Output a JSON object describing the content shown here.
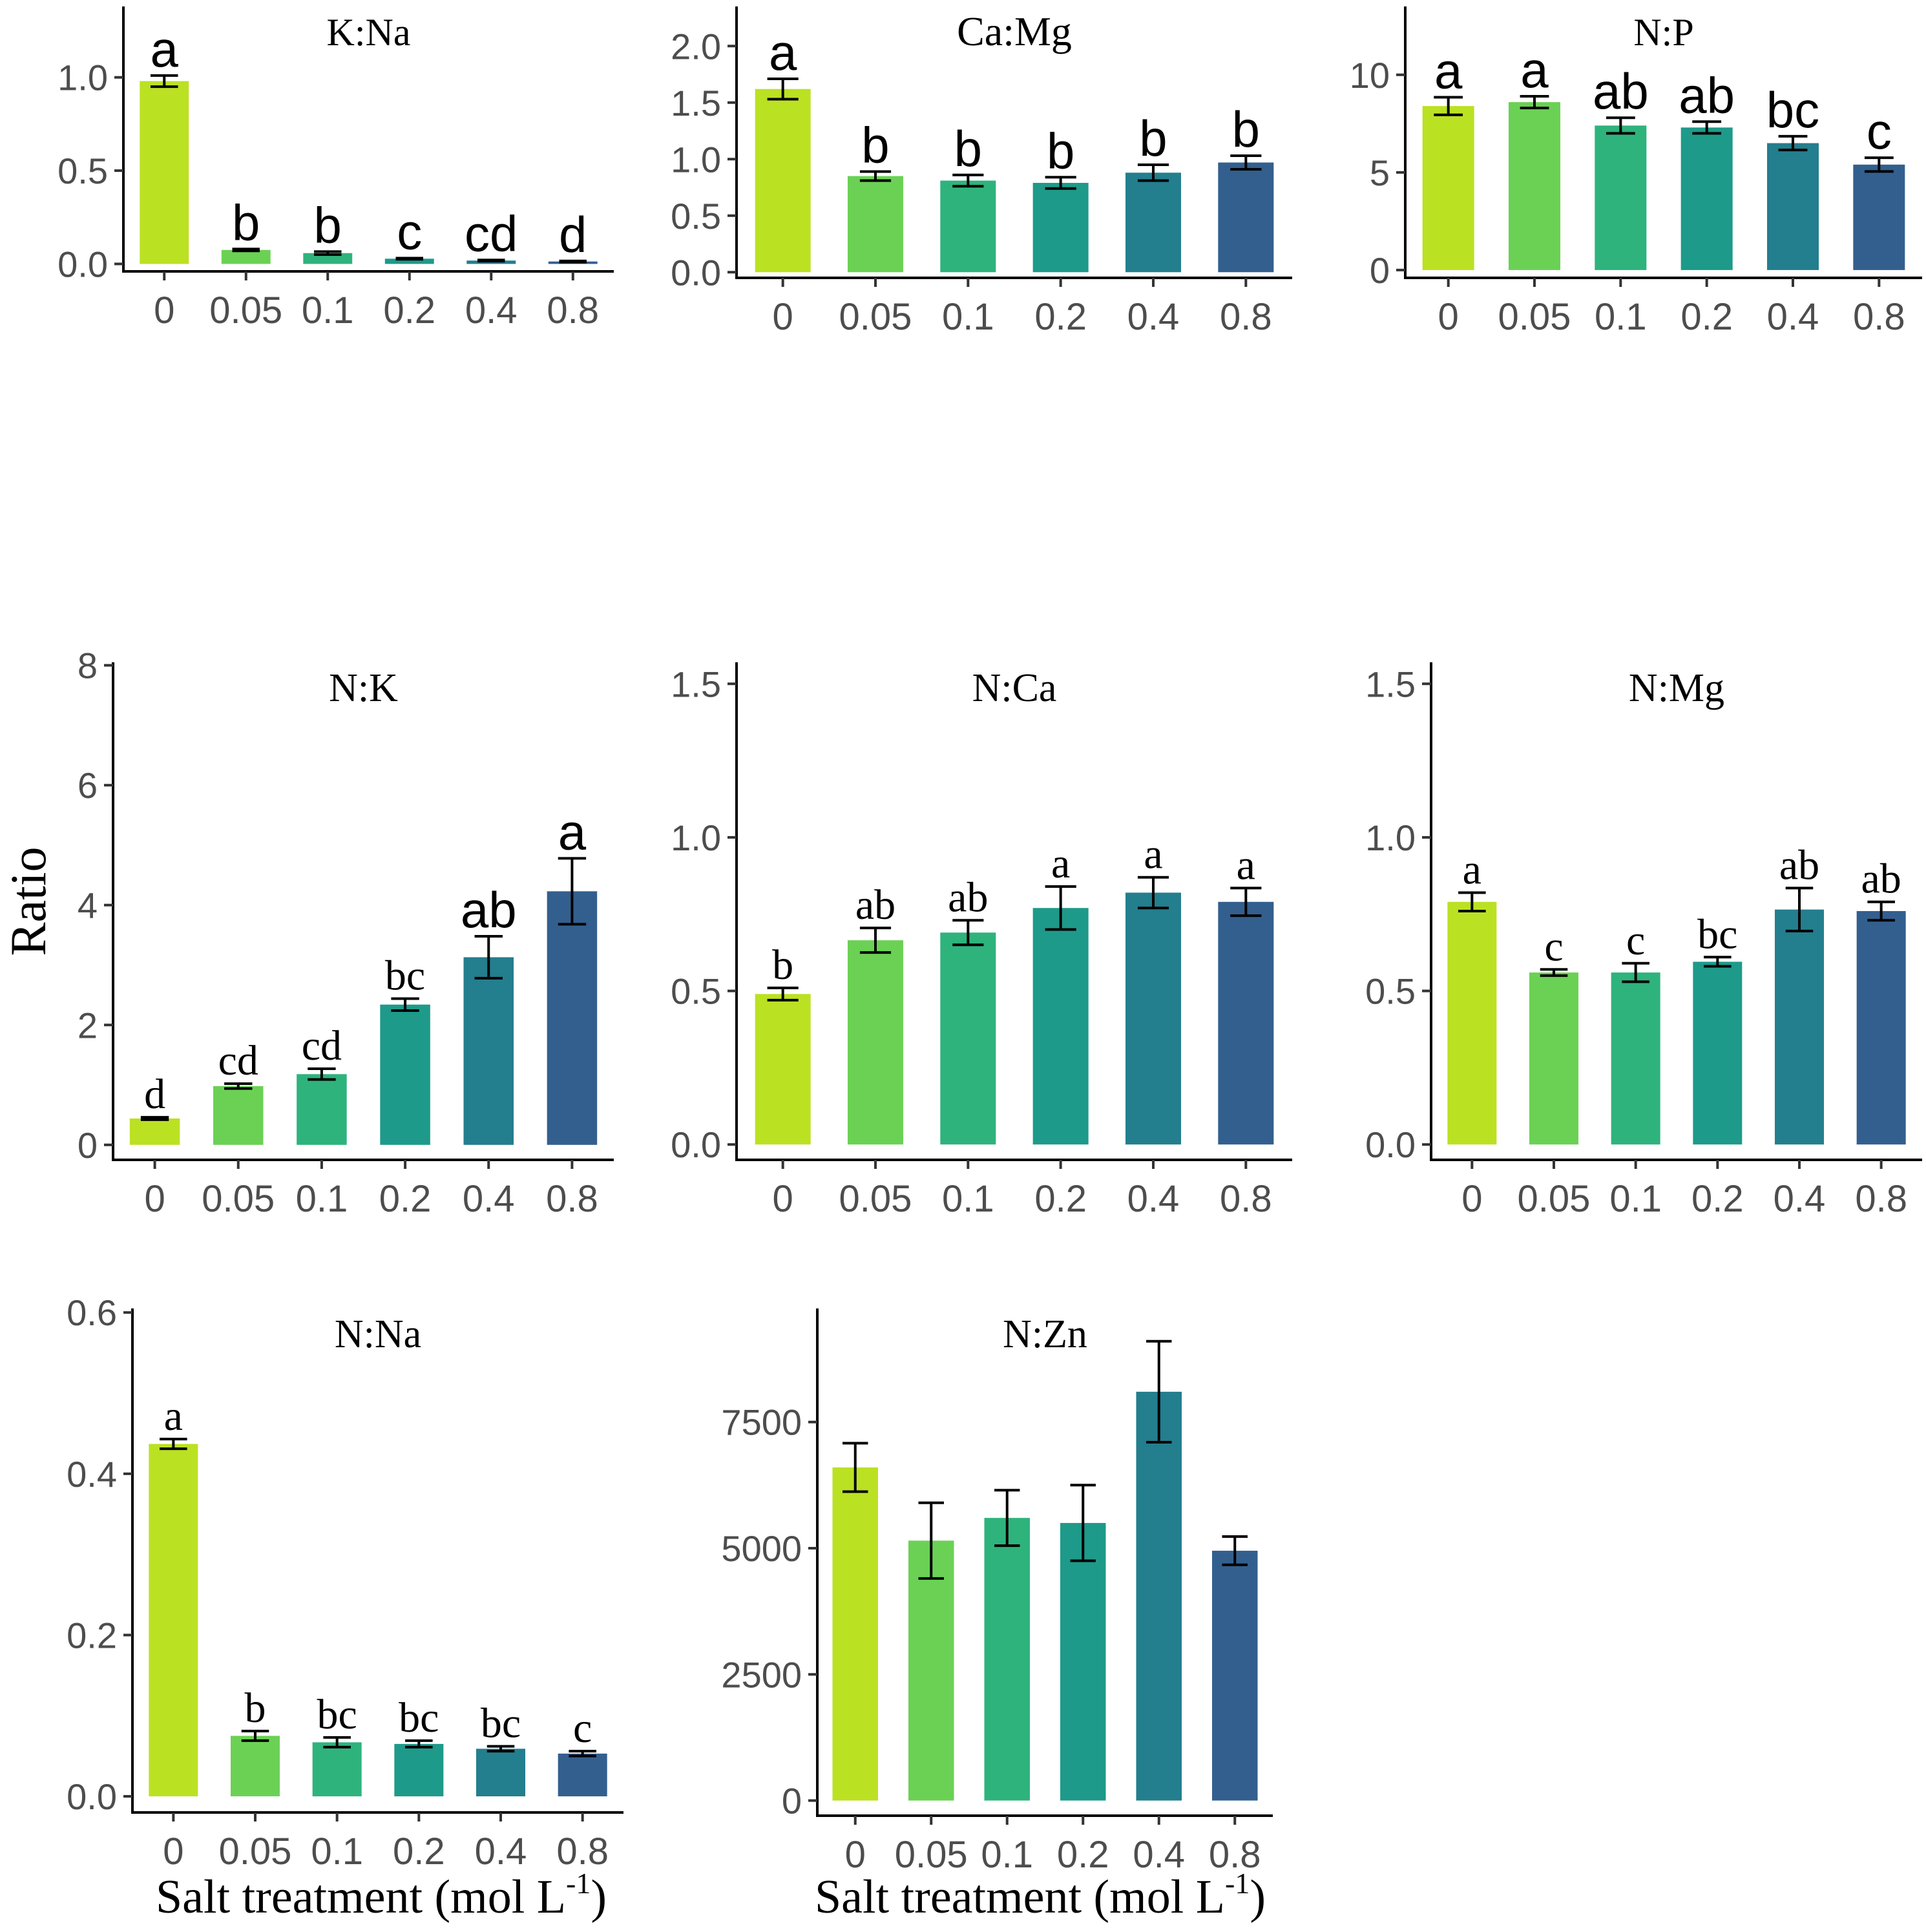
{
  "y_axis_title": "Ratio",
  "x_axis_title": "Salt treatment (mol L",
  "x_axis_title_sup": "-1",
  "x_axis_title_close": ")",
  "colors": [
    "#bbe123",
    "#6bd155",
    "#2eb37c",
    "#1e9a8a",
    "#237e8e",
    "#335f8e"
  ],
  "chart_data": [
    {
      "type": "bar",
      "title": "K:Na",
      "categories": [
        "0",
        "0.05",
        "0.1",
        "0.2",
        "0.4",
        "0.8"
      ],
      "values": [
        0.98,
        0.075,
        0.058,
        0.028,
        0.018,
        0.013
      ],
      "errors": [
        0.03,
        0.005,
        0.008,
        0.003,
        0.003,
        0.003
      ],
      "letters": [
        "a",
        "b",
        "b",
        "c",
        "cd",
        "d"
      ],
      "letter_font": "sans",
      "ylim": [
        -0.04,
        1.38
      ],
      "yticks": [
        0.0,
        0.5,
        1.0
      ],
      "ytick_labels": [
        "0.0",
        "0.5",
        "1.0"
      ]
    },
    {
      "type": "bar",
      "title": "Ca:Mg",
      "categories": [
        "0",
        "0.05",
        "0.1",
        "0.2",
        "0.4",
        "0.8"
      ],
      "values": [
        1.62,
        0.85,
        0.81,
        0.79,
        0.88,
        0.97
      ],
      "errors": [
        0.09,
        0.04,
        0.05,
        0.05,
        0.07,
        0.06
      ],
      "letters": [
        "a",
        "b",
        "b",
        "b",
        "b",
        "b"
      ],
      "letter_font": "sans",
      "ylim": [
        -0.05,
        2.35
      ],
      "yticks": [
        0.0,
        0.5,
        1.0,
        1.5,
        2.0
      ],
      "ytick_labels": [
        "0.0",
        "0.5",
        "1.0",
        "1.5",
        "2.0"
      ]
    },
    {
      "type": "bar",
      "title": "N:P",
      "categories": [
        "0",
        "0.05",
        "0.1",
        "0.2",
        "0.4",
        "0.8"
      ],
      "values": [
        8.4,
        8.6,
        7.4,
        7.3,
        6.5,
        5.4
      ],
      "errors": [
        0.45,
        0.3,
        0.4,
        0.3,
        0.35,
        0.35
      ],
      "letters": [
        "a",
        "a",
        "ab",
        "ab",
        "bc",
        "c"
      ],
      "letter_font": "sans",
      "ylim": [
        -0.4,
        13.5
      ],
      "yticks": [
        0,
        5,
        10
      ],
      "ytick_labels": [
        "0",
        "5",
        "10"
      ]
    },
    {
      "type": "bar",
      "title": "N:K",
      "categories": [
        "0",
        "0.05",
        "0.1",
        "0.2",
        "0.4",
        "0.8"
      ],
      "values": [
        0.44,
        0.98,
        1.18,
        2.34,
        3.13,
        4.23
      ],
      "errors": [
        0.02,
        0.04,
        0.09,
        0.1,
        0.35,
        0.55
      ],
      "letters": [
        "d",
        "cd",
        "cd",
        "bc",
        "ab",
        "a"
      ],
      "letter_font": "mixed",
      "ylim": [
        -0.25,
        8.05
      ],
      "yticks": [
        0,
        2,
        4,
        6,
        8
      ],
      "ytick_labels": [
        "0",
        "2",
        "4",
        "6",
        "8"
      ]
    },
    {
      "type": "bar",
      "title": "N:Ca",
      "categories": [
        "0",
        "0.05",
        "0.1",
        "0.2",
        "0.4",
        "0.8"
      ],
      "values": [
        0.49,
        0.665,
        0.69,
        0.77,
        0.82,
        0.79
      ],
      "errors": [
        0.02,
        0.04,
        0.04,
        0.07,
        0.05,
        0.045
      ],
      "letters": [
        "b",
        "ab",
        "ab",
        "a",
        "a",
        "a"
      ],
      "letter_font": "serif",
      "ylim": [
        -0.05,
        1.57
      ],
      "yticks": [
        0.0,
        0.5,
        1.0,
        1.5
      ],
      "ytick_labels": [
        "0.0",
        "0.5",
        "1.0",
        "1.5"
      ]
    },
    {
      "type": "bar",
      "title": "N:Mg",
      "categories": [
        "0",
        "0.05",
        "0.1",
        "0.2",
        "0.4",
        "0.8"
      ],
      "values": [
        0.79,
        0.56,
        0.56,
        0.595,
        0.765,
        0.76
      ],
      "errors": [
        0.03,
        0.01,
        0.03,
        0.015,
        0.07,
        0.03
      ],
      "letters": [
        "a",
        "c",
        "c",
        "bc",
        "ab",
        "ab"
      ],
      "letter_font": "serif",
      "ylim": [
        -0.05,
        1.57
      ],
      "yticks": [
        0.0,
        0.5,
        1.0,
        1.5
      ],
      "ytick_labels": [
        "0.0",
        "0.5",
        "1.0",
        "1.5"
      ]
    },
    {
      "type": "bar",
      "title": "N:Na",
      "categories": [
        "0",
        "0.05",
        "0.1",
        "0.2",
        "0.4",
        "0.8"
      ],
      "values": [
        0.437,
        0.075,
        0.067,
        0.065,
        0.059,
        0.053
      ],
      "errors": [
        0.006,
        0.006,
        0.006,
        0.004,
        0.003,
        0.003
      ],
      "letters": [
        "a",
        "b",
        "bc",
        "bc",
        "bc",
        "c"
      ],
      "letter_font": "serif",
      "ylim": [
        -0.02,
        0.605
      ],
      "yticks": [
        0.0,
        0.2,
        0.4,
        0.6
      ],
      "ytick_labels": [
        "0.0",
        "0.2",
        "0.4",
        "0.6"
      ]
    },
    {
      "type": "bar",
      "title": "N:Zn",
      "categories": [
        "0",
        "0.05",
        "0.1",
        "0.2",
        "0.4",
        "0.8"
      ],
      "values": [
        6600,
        5150,
        5600,
        5500,
        8100,
        4950
      ],
      "errors": [
        480,
        750,
        550,
        750,
        1000,
        280
      ],
      "letters": [
        "",
        "",
        "",
        "",
        "",
        ""
      ],
      "letter_font": "serif",
      "ylim": [
        -300,
        9750
      ],
      "yticks": [
        0,
        2500,
        5000,
        7500
      ],
      "ytick_labels": [
        "0",
        "2500",
        "5000",
        "7500"
      ]
    }
  ]
}
